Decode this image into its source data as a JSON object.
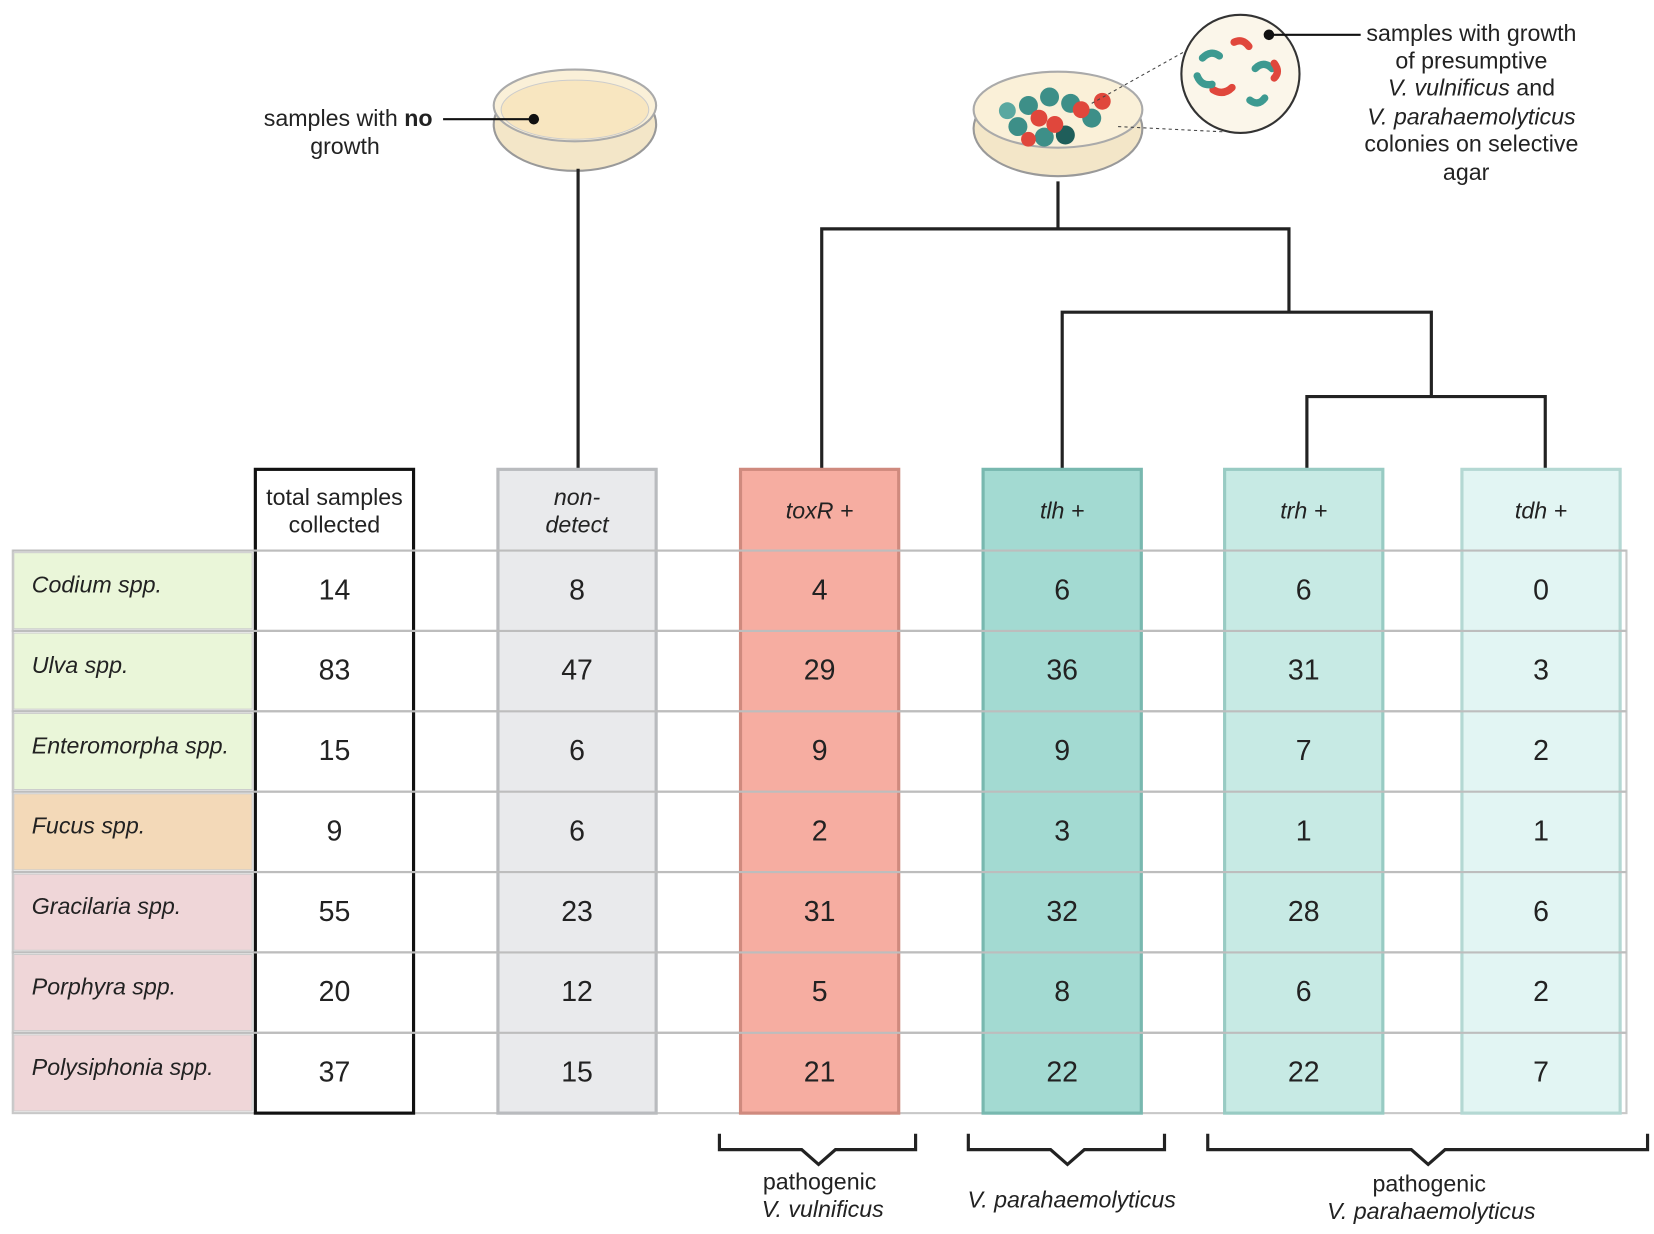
{
  "no_growth_label": {
    "parts": [
      "samples with",
      "no",
      "growth"
    ]
  },
  "growth_label": [
    "samples with growth",
    "of presumptive",
    "V. vulnificus",
    "and",
    "V. parahaemolyticus",
    "colonies on selective",
    "agar"
  ],
  "table": {
    "columns": [
      {
        "header": [
          "total samples",
          "collected"
        ]
      },
      {
        "header": [
          "non-",
          "detect"
        ]
      },
      {
        "header": [
          "toxR +"
        ]
      },
      {
        "header": [
          "tlh +"
        ]
      },
      {
        "header": [
          "trh +"
        ]
      },
      {
        "header": [
          "tdh +"
        ]
      }
    ],
    "rows": [
      {
        "name": "Codium spp.",
        "values": [
          14,
          8,
          4,
          6,
          6,
          0
        ]
      },
      {
        "name": "Ulva spp.",
        "values": [
          83,
          47,
          29,
          36,
          31,
          3
        ]
      },
      {
        "name": "Enteromorpha spp.",
        "values": [
          15,
          6,
          9,
          9,
          7,
          2
        ]
      },
      {
        "name": "Fucus spp.",
        "values": [
          9,
          6,
          2,
          3,
          1,
          1
        ]
      },
      {
        "name": "Gracilaria spp.",
        "values": [
          55,
          23,
          31,
          32,
          28,
          6
        ]
      },
      {
        "name": "Porphyra spp.",
        "values": [
          20,
          12,
          5,
          8,
          6,
          2
        ]
      },
      {
        "name": "Polysiphonia spp.",
        "values": [
          37,
          15,
          21,
          22,
          22,
          7
        ]
      }
    ]
  },
  "brackets": [
    {
      "label": [
        "pathogenic",
        "V. vulnificus"
      ]
    },
    {
      "label": [
        "V. parahaemolyticus"
      ]
    },
    {
      "label": [
        "pathogenic",
        "V. parahaemolyticus"
      ]
    }
  ]
}
